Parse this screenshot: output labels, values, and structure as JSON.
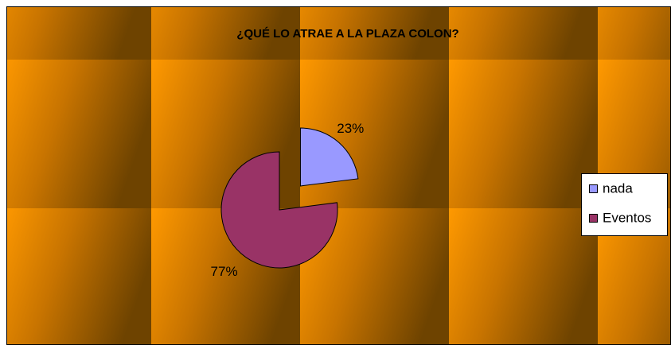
{
  "chart_data": {
    "type": "pie",
    "title": "¿QUÉ LO ATRAE A LA PLAZA COLON?",
    "categories": [
      "nada",
      "Eventos"
    ],
    "values": [
      23,
      77
    ],
    "value_labels": [
      "23%",
      "77%"
    ],
    "colors": [
      "#9999ff",
      "#993366"
    ],
    "legend": "right"
  }
}
